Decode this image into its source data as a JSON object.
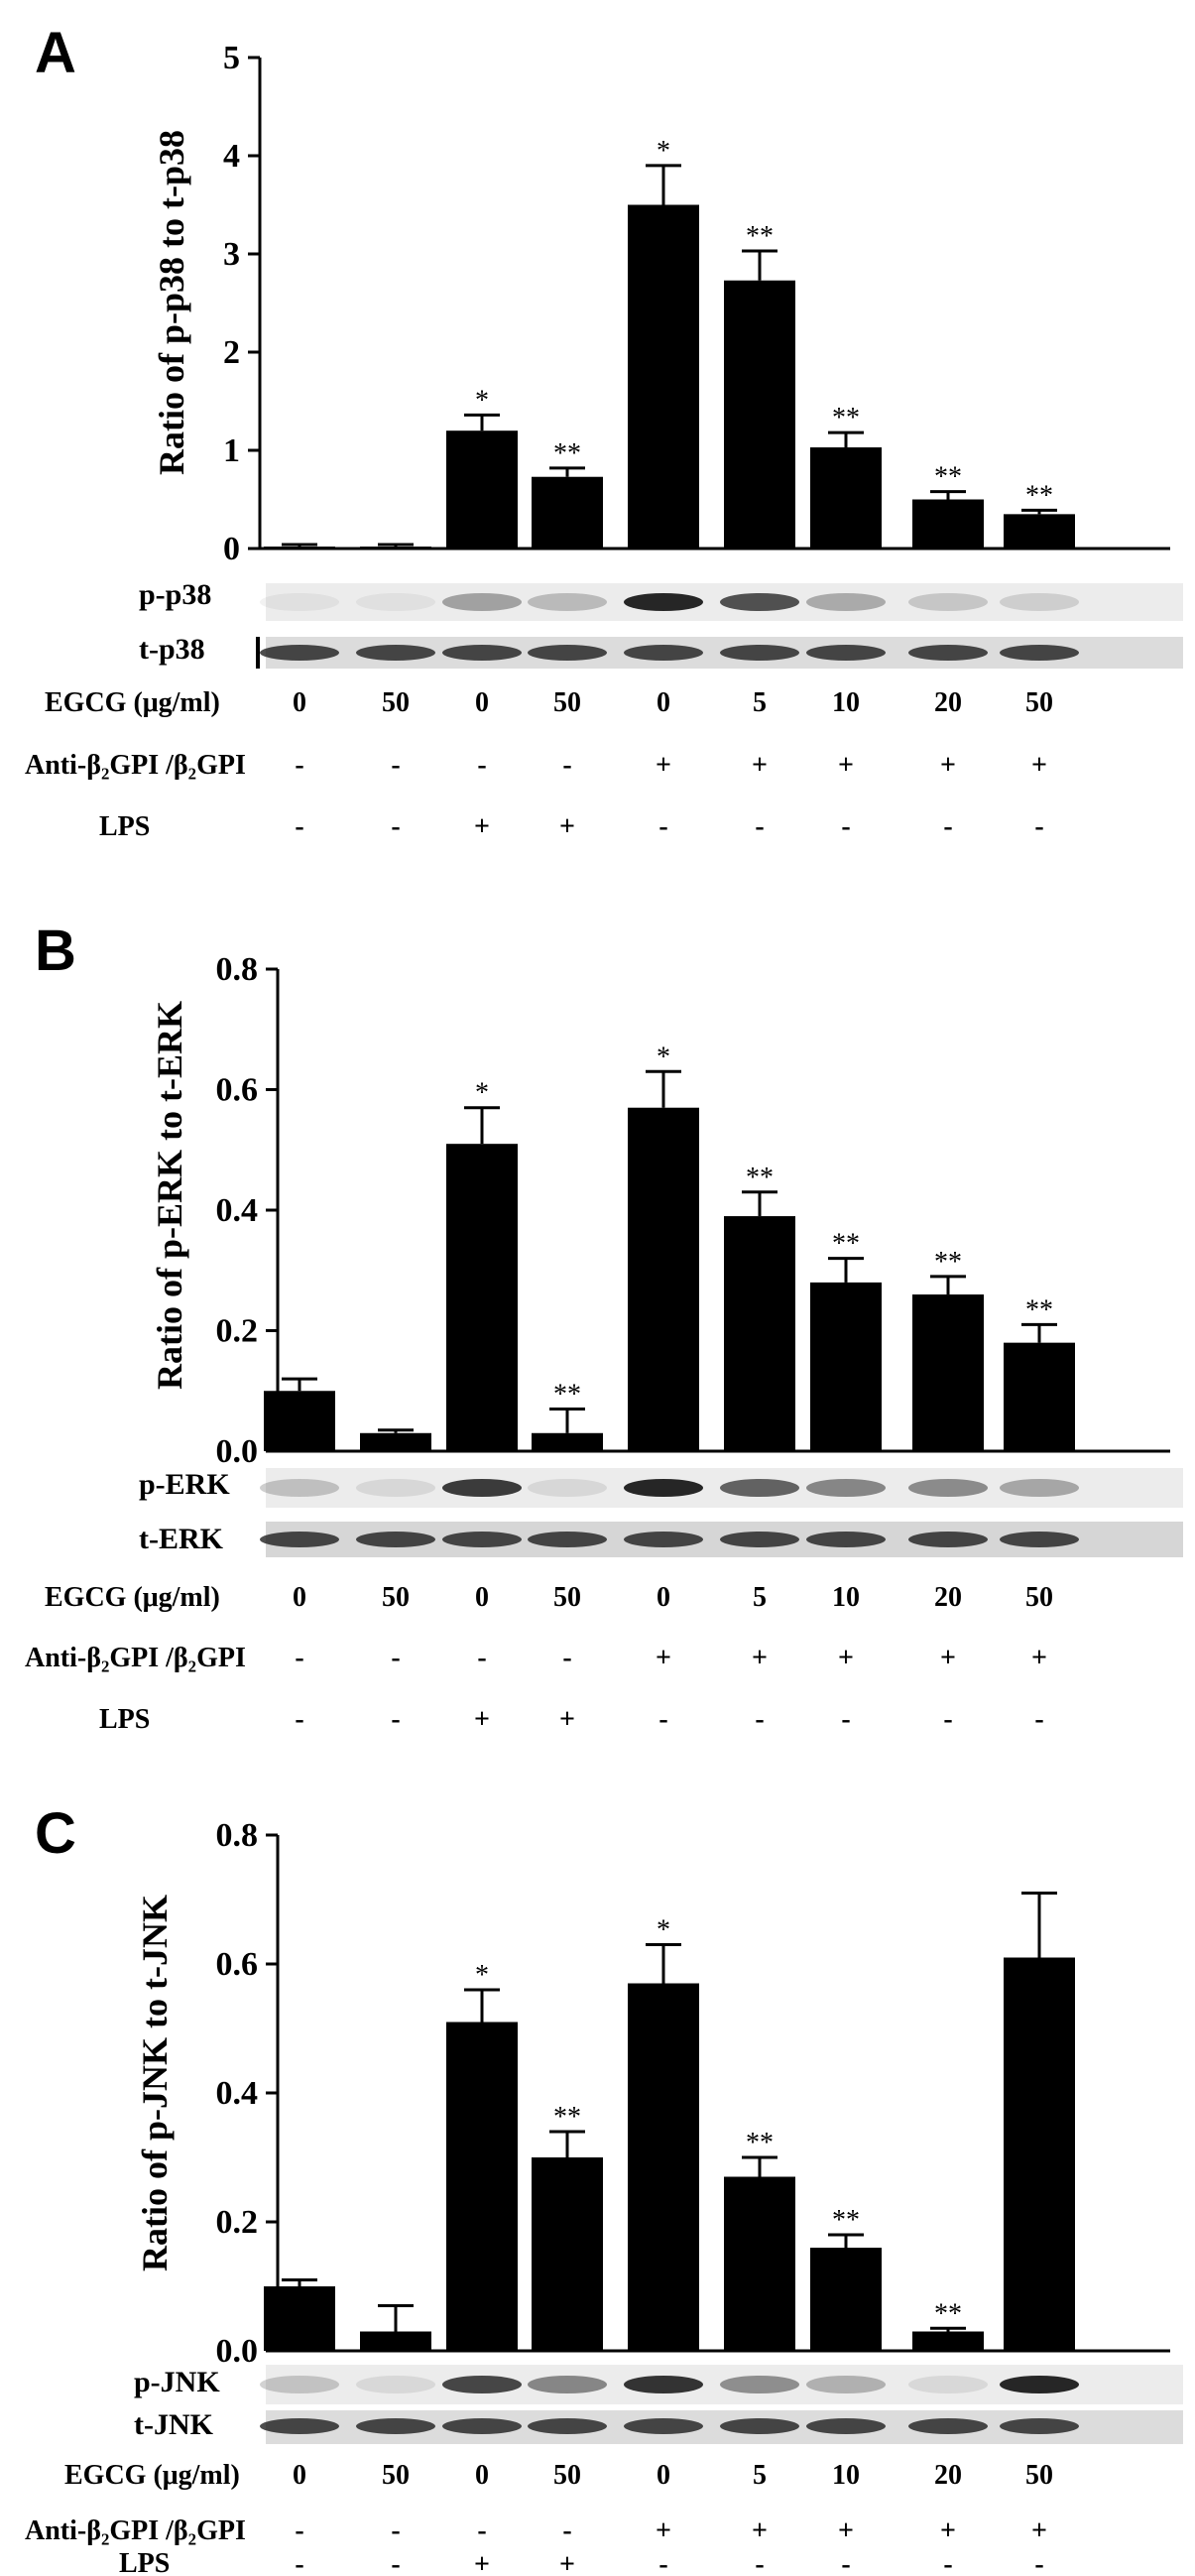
{
  "panels": [
    {
      "letter": "A",
      "band_labels": [
        "p-p38",
        "t-p38"
      ],
      "condition_labels": [
        "EGCG (μg/ml)",
        "Anti-β₂GPI /β₂GPI",
        "LPS"
      ],
      "egcg": [
        "0",
        "50",
        "0",
        "50",
        "0",
        "5",
        "10",
        "20",
        "50"
      ],
      "anti": [
        "-",
        "-",
        "-",
        "-",
        "+",
        "+",
        "+",
        "+",
        "+"
      ],
      "lps": [
        "-",
        "-",
        "+",
        "+",
        "-",
        "-",
        "-",
        "-",
        "-"
      ]
    },
    {
      "letter": "B",
      "band_labels": [
        "p-ERK",
        "t-ERK"
      ],
      "condition_labels": [
        "EGCG (μg/ml)",
        "Anti-β₂GPI /β₂GPI",
        "LPS"
      ],
      "egcg": [
        "0",
        "50",
        "0",
        "50",
        "0",
        "5",
        "10",
        "20",
        "50"
      ],
      "anti": [
        "-",
        "-",
        "-",
        "-",
        "+",
        "+",
        "+",
        "+",
        "+"
      ],
      "lps": [
        "-",
        "-",
        "+",
        "+",
        "-",
        "-",
        "-",
        "-",
        "-"
      ]
    },
    {
      "letter": "C",
      "band_labels": [
        "p-JNK",
        "t-JNK"
      ],
      "condition_labels": [
        "EGCG (μg/ml)",
        "Anti-β₂GPI /β₂GPI",
        "LPS"
      ],
      "egcg": [
        "0",
        "50",
        "0",
        "50",
        "0",
        "5",
        "10",
        "20",
        "50"
      ],
      "anti": [
        "-",
        "-",
        "-",
        "-",
        "+",
        "+",
        "+",
        "+",
        "+"
      ],
      "lps": [
        "-",
        "-",
        "+",
        "+",
        "-",
        "-",
        "-",
        "-",
        "-"
      ]
    }
  ],
  "chart_data": [
    {
      "type": "bar",
      "ylabel": "Ratio of p-p38 to t-p38",
      "ylim": [
        0,
        5
      ],
      "yticks": [
        "0",
        "1",
        "2",
        "3",
        "4",
        "5"
      ],
      "values": [
        0.02,
        0.02,
        1.2,
        0.73,
        3.5,
        2.73,
        1.03,
        0.5,
        0.35
      ],
      "errors": [
        0.02,
        0.02,
        0.16,
        0.09,
        0.4,
        0.3,
        0.15,
        0.08,
        0.04
      ],
      "annotations": [
        "",
        "",
        "*",
        "**",
        "*",
        "**",
        "**",
        "**",
        "**"
      ],
      "bar_color": "#000000"
    },
    {
      "type": "bar",
      "ylabel": "Ratio of p-ERK to t-ERK",
      "ylim": [
        0,
        0.8
      ],
      "yticks": [
        "0.0",
        "0.2",
        "0.4",
        "0.6",
        "0.8"
      ],
      "values": [
        0.1,
        0.03,
        0.51,
        0.03,
        0.57,
        0.39,
        0.28,
        0.26,
        0.18
      ],
      "errors": [
        0.02,
        0.005,
        0.06,
        0.04,
        0.06,
        0.04,
        0.04,
        0.03,
        0.03
      ],
      "annotations": [
        "",
        "",
        "*",
        "**",
        "*",
        "**",
        "**",
        "**",
        "**"
      ],
      "bar_color": "#000000"
    },
    {
      "type": "bar",
      "ylabel": "Ratio of p-JNK to t-JNK",
      "ylim": [
        0,
        0.8
      ],
      "yticks": [
        "0.0",
        "0.2",
        "0.4",
        "0.6",
        "0.8"
      ],
      "values": [
        0.1,
        0.03,
        0.51,
        0.3,
        0.57,
        0.27,
        0.16,
        0.03,
        0.61
      ],
      "errors": [
        0.01,
        0.04,
        0.05,
        0.04,
        0.06,
        0.03,
        0.02,
        0.005,
        0.1
      ],
      "annotations": [
        "",
        "",
        "*",
        "**",
        "*",
        "**",
        "**",
        "**",
        ""
      ],
      "bar_color": "#000000"
    }
  ]
}
